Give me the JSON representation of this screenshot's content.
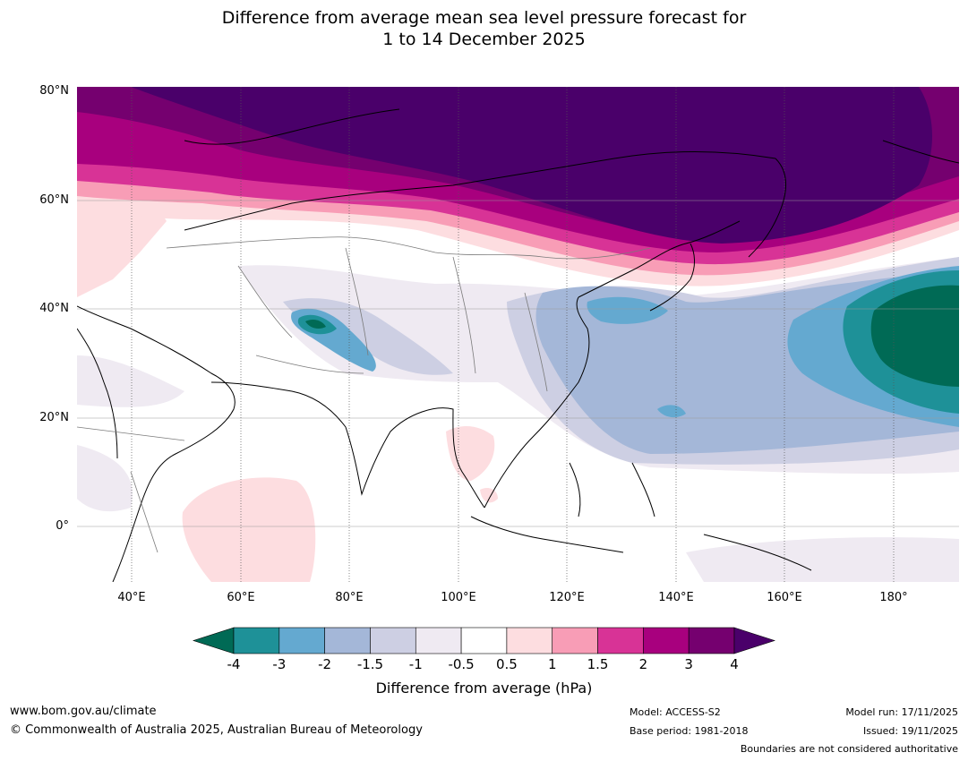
{
  "title": {
    "line1": "Difference from average mean sea level pressure forecast for",
    "line2": "1 to 14 December 2025"
  },
  "map": {
    "lat_labels": [
      "80°N",
      "60°N",
      "40°N",
      "20°N",
      "0°"
    ],
    "lon_labels": [
      "40°E",
      "60°E",
      "80°E",
      "100°E",
      "120°E",
      "140°E",
      "160°E",
      "180°"
    ],
    "extent": {
      "lon_min": 30,
      "lon_max": 192,
      "lat_min": -10,
      "lat_max": 81
    }
  },
  "colorbar": {
    "title": "Difference from average (hPa)",
    "ticks": [
      "-4",
      "-3",
      "-2",
      "-1.5",
      "-1",
      "-0.5",
      "0.5",
      "1",
      "1.5",
      "2",
      "3",
      "4"
    ],
    "colors": [
      "#006a55",
      "#1e9198",
      "#64a9d0",
      "#a4b7d8",
      "#cdcfe3",
      "#efeaf2",
      "#ffffff",
      "#fddde0",
      "#f89db6",
      "#d83396",
      "#a8007e",
      "#75006f",
      "#4a006a"
    ]
  },
  "footer": {
    "website": "www.bom.gov.au/climate",
    "copyright": "© Commonwealth of Australia 2025, Australian Bureau of Meteorology",
    "model": "Model: ACCESS-S2",
    "base_period": "Base period: 1981-2018",
    "model_run": "Model run: 17/11/2025",
    "issued": "Issued: 19/11/2025",
    "disclaimer": "Boundaries are not considered authoritative"
  }
}
